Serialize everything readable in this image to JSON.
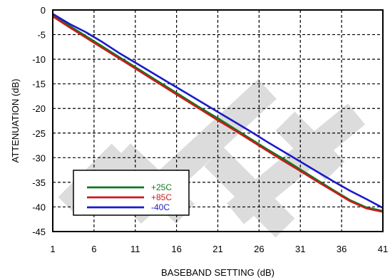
{
  "chart_data": {
    "type": "line",
    "title": "",
    "xlabel": "BASEBAND SETTING (dB)",
    "ylabel": "ATTENUATION (dB)",
    "xlim": [
      1,
      41
    ],
    "ylim": [
      -45,
      0
    ],
    "xticks": [
      "1",
      "6",
      "11",
      "16",
      "21",
      "26",
      "31",
      "36",
      "41"
    ],
    "yticks": [
      "0",
      "-5",
      "-10",
      "-15",
      "-20",
      "-25",
      "-30",
      "-35",
      "-40",
      "-45"
    ],
    "grid": true,
    "legend_position": "lower-left",
    "series": [
      {
        "name": "+25C",
        "color": "#0a7a1e",
        "x": [
          1,
          3,
          5,
          7,
          9,
          11,
          13,
          15,
          17,
          19,
          21,
          23,
          25,
          27,
          29,
          31,
          33,
          35,
          37,
          39,
          41
        ],
        "y": [
          -1.0,
          -3.2,
          -5.3,
          -7.4,
          -9.5,
          -11.6,
          -13.7,
          -15.8,
          -17.9,
          -20.0,
          -22.0,
          -24.1,
          -26.2,
          -28.3,
          -30.3,
          -32.4,
          -34.5,
          -36.6,
          -38.6,
          -40.1,
          -40.8
        ]
      },
      {
        "name": "+85C",
        "color": "#cc1a1a",
        "x": [
          1,
          3,
          5,
          7,
          9,
          11,
          13,
          15,
          17,
          19,
          21,
          23,
          25,
          27,
          29,
          31,
          33,
          35,
          37,
          39,
          41
        ],
        "y": [
          -1.3,
          -3.5,
          -5.6,
          -7.7,
          -9.8,
          -11.9,
          -14.0,
          -16.1,
          -18.2,
          -20.3,
          -22.4,
          -24.4,
          -26.5,
          -28.6,
          -30.7,
          -32.7,
          -34.8,
          -36.8,
          -38.8,
          -40.3,
          -41.0
        ]
      },
      {
        "name": "-40C",
        "color": "#1a1acc",
        "x": [
          1,
          3,
          5,
          7,
          9,
          11,
          13,
          15,
          17,
          19,
          21,
          23,
          25,
          27,
          29,
          31,
          33,
          35,
          37,
          39,
          41
        ],
        "y": [
          -0.8,
          -2.8,
          -4.5,
          -6.5,
          -8.7,
          -10.7,
          -12.7,
          -14.7,
          -16.7,
          -18.7,
          -20.7,
          -22.7,
          -24.7,
          -26.8,
          -28.8,
          -30.8,
          -32.8,
          -34.8,
          -36.7,
          -38.4,
          -40.2
        ]
      }
    ],
    "watermark": "DRAFT"
  }
}
